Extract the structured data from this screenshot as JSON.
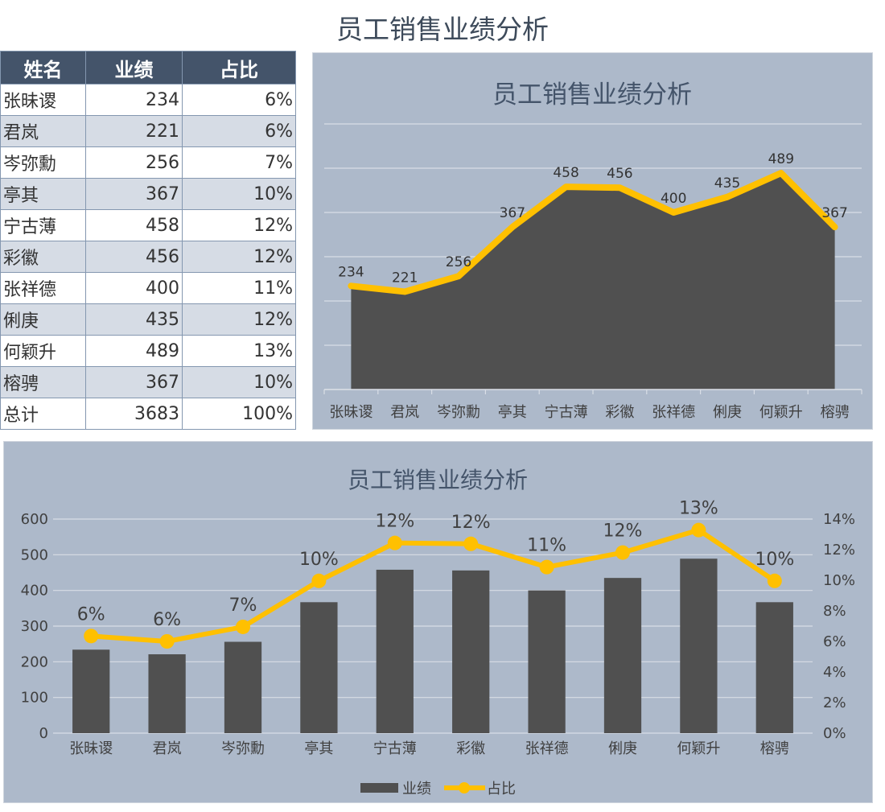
{
  "page_title": "员工销售业绩分析",
  "table": {
    "headers": [
      "姓名",
      "业绩",
      "占比"
    ],
    "rows": [
      {
        "name": "张昧谡",
        "sales": "234",
        "pct": "6%"
      },
      {
        "name": "君岚",
        "sales": "221",
        "pct": "6%"
      },
      {
        "name": "岑弥勳",
        "sales": "256",
        "pct": "7%"
      },
      {
        "name": "亭其",
        "sales": "367",
        "pct": "10%"
      },
      {
        "name": "宁古薄",
        "sales": "458",
        "pct": "12%"
      },
      {
        "name": "彩徽",
        "sales": "456",
        "pct": "12%"
      },
      {
        "name": "张祥德",
        "sales": "400",
        "pct": "11%"
      },
      {
        "name": "俐庚",
        "sales": "435",
        "pct": "12%"
      },
      {
        "name": "何颖升",
        "sales": "489",
        "pct": "13%"
      },
      {
        "name": "榕骋",
        "sales": "367",
        "pct": "10%"
      }
    ],
    "total": {
      "name": "总计",
      "sales": "3683",
      "pct": "100%"
    }
  },
  "colors": {
    "header_bg": "#44546a",
    "chart_bg": "#adb9ca",
    "bar_gray": "#505050",
    "line_yellow": "#ffc000"
  },
  "chart_data": [
    {
      "type": "area",
      "title": "员工销售业绩分析",
      "categories": [
        "张昧谡",
        "君岚",
        "岑弥勳",
        "亭其",
        "宁古薄",
        "彩徽",
        "张祥德",
        "俐庚",
        "何颖升",
        "榕骋"
      ],
      "series": [
        {
          "style": "area",
          "values": [
            234,
            221,
            256,
            367,
            458,
            456,
            400,
            435,
            489,
            367
          ]
        },
        {
          "style": "line",
          "values": [
            234,
            221,
            256,
            367,
            458,
            456,
            400,
            435,
            489,
            367
          ]
        }
      ],
      "data_labels": [
        "234",
        "221",
        "256",
        "367",
        "458",
        "456",
        "400",
        "435",
        "489",
        "367"
      ],
      "ylim": [
        0,
        600
      ],
      "grid": true,
      "y_axis_visible": false,
      "legend": false
    },
    {
      "type": "bar",
      "title": "员工销售业绩分析",
      "categories": [
        "张昧谡",
        "君岚",
        "岑弥勳",
        "亭其",
        "宁古薄",
        "彩徽",
        "张祥德",
        "俐庚",
        "何颖升",
        "榕骋"
      ],
      "series": [
        {
          "name": "业绩",
          "type": "bar",
          "axis": "left",
          "values": [
            234,
            221,
            256,
            367,
            458,
            456,
            400,
            435,
            489,
            367
          ]
        },
        {
          "name": "占比",
          "type": "line",
          "axis": "right",
          "values": [
            6.35,
            6.0,
            6.95,
            9.96,
            12.44,
            12.38,
            10.86,
            11.81,
            13.28,
            9.96
          ],
          "data_labels": [
            "6%",
            "6%",
            "7%",
            "10%",
            "12%",
            "12%",
            "11%",
            "12%",
            "13%",
            "10%"
          ]
        }
      ],
      "ylim": [
        0,
        600
      ],
      "yticks": [
        "0",
        "100",
        "200",
        "300",
        "400",
        "500",
        "600"
      ],
      "y2lim": [
        0,
        14
      ],
      "y2ticks": [
        "0%",
        "2%",
        "4%",
        "6%",
        "8%",
        "10%",
        "12%",
        "14%"
      ],
      "grid": true,
      "legend": "bottom"
    }
  ]
}
